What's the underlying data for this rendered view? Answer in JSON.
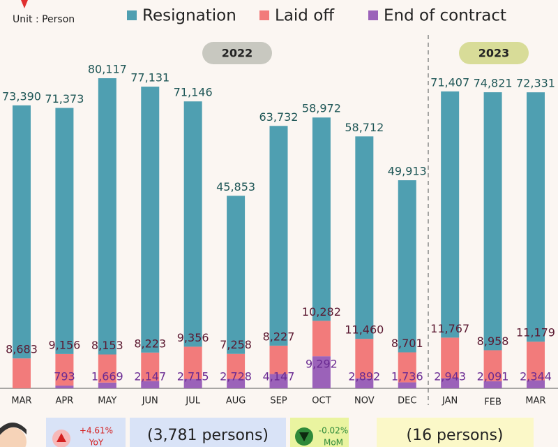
{
  "chart_data": {
    "type": "stacked_bar",
    "unit_label": "Unit : Person",
    "year_labels": [
      "2022",
      "2023"
    ],
    "categories": [
      "MAR",
      "APR",
      "MAY",
      "JUN",
      "JUL",
      "AUG",
      "SEP",
      "OCT",
      "NOV",
      "DEC",
      "JAN",
      "FEB",
      "MAR"
    ],
    "series": [
      {
        "name": "Resignation",
        "color": "#4f9fb1",
        "values": [
          73390,
          71373,
          80117,
          77131,
          71146,
          45853,
          63732,
          58972,
          58712,
          49913,
          71407,
          74821,
          72331
        ],
        "value_labels": [
          "73,390",
          "71,373",
          "80,117",
          "77,131",
          "71,146",
          "45,853",
          "63,732",
          "58,972",
          "58,712",
          "49,913",
          "71,407",
          "74,821",
          "72,331"
        ]
      },
      {
        "name": "Laid off",
        "color": "#f27b7b",
        "values": [
          8683,
          9156,
          8153,
          8223,
          9356,
          7258,
          8227,
          10282,
          11460,
          8701,
          11767,
          8958,
          11179
        ],
        "value_labels": [
          "8,683",
          "9,156",
          "8,153",
          "8,223",
          "9,356",
          "7,258",
          "8,227",
          "10,282",
          "11,460",
          "8,701",
          "11,767",
          "8,958",
          "11,179"
        ]
      },
      {
        "name": "End of contract",
        "color": "#9b62b9",
        "values": [
          null,
          793,
          1669,
          2147,
          2715,
          2728,
          4147,
          9292,
          2892,
          1736,
          2943,
          2091,
          2344
        ],
        "value_labels": [
          null,
          "793",
          "1,669",
          "2,147",
          "2,715",
          "2,728",
          "4,147",
          "9,292",
          "2,892",
          "1,736",
          "2,943",
          "2,091",
          "2,344"
        ]
      }
    ],
    "highlights": [
      {
        "change": "+4.61%",
        "period": "YoY",
        "persons": "(3,781 persons)"
      },
      {
        "change": "-0.02%",
        "period": "MoM",
        "persons": "(16 persons)"
      }
    ]
  }
}
